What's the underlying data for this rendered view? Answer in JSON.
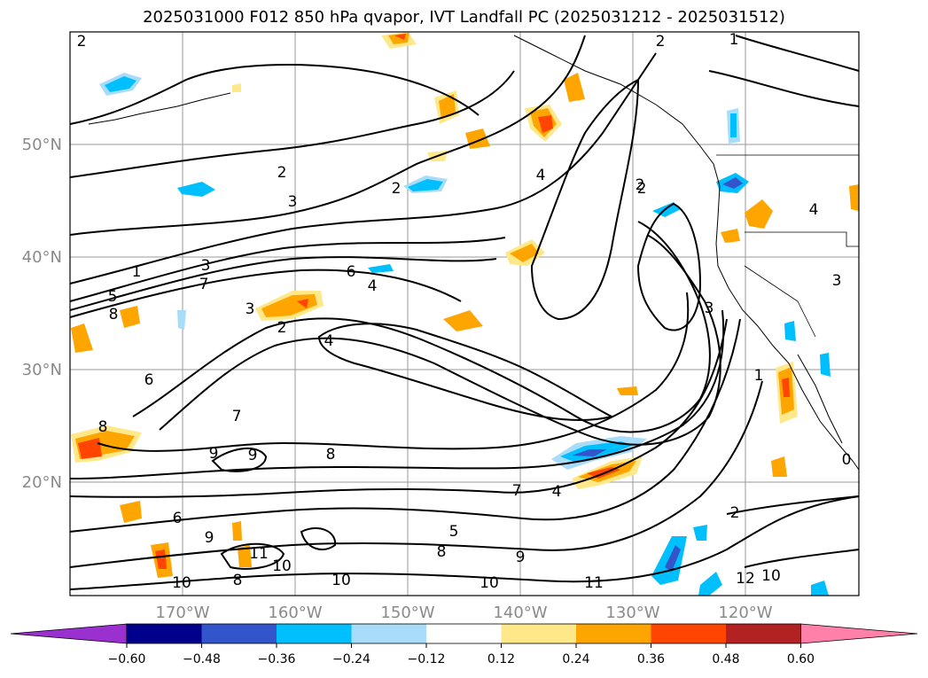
{
  "title": "2025031000 F012 850 hPa qvapor, IVT Landfall PC (2025031212 - 2025031512)",
  "map": {
    "lat_labels": [
      "50°N",
      "40°N",
      "30°N",
      "20°N"
    ],
    "lon_labels": [
      "170°W",
      "160°W",
      "150°W",
      "140°W",
      "130°W",
      "120°W"
    ],
    "contour_labels": [
      "2",
      "1",
      "2",
      "2",
      "3",
      "2",
      "4",
      "2",
      "1",
      "3",
      "7",
      "6",
      "4",
      "5",
      "8",
      "3",
      "2",
      "4",
      "6",
      "7",
      "8",
      "9",
      "9",
      "8",
      "7",
      "4",
      "6",
      "5",
      "8",
      "9",
      "10",
      "11",
      "10",
      "8",
      "10",
      "9",
      "10",
      "11",
      "12",
      "10",
      "2",
      "3",
      "4",
      "3",
      "2",
      "1",
      "0"
    ]
  },
  "colorbar": {
    "ticks": [
      "−0.60",
      "−0.48",
      "−0.36",
      "−0.24",
      "−0.12",
      "0.12",
      "0.24",
      "0.36",
      "0.48",
      "0.60"
    ],
    "colors": [
      "#9b30d0",
      "#00008b",
      "#3355cc",
      "#00bfff",
      "#a8dcf8",
      "#ffffff",
      "#ffe88a",
      "#ffa500",
      "#ff4500",
      "#b22222",
      "#ff80a8"
    ]
  }
}
